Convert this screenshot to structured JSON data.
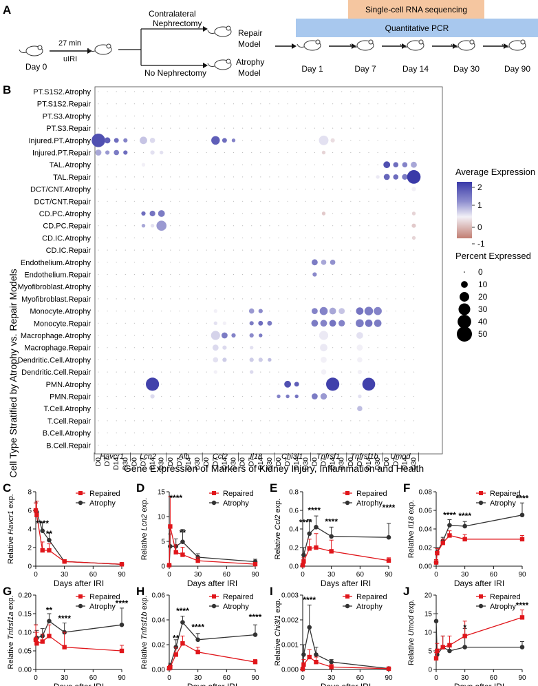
{
  "colors": {
    "rna_bar": "#f5c6a0",
    "pcr_bar": "#a8c8ee",
    "repaired": "#e0161b",
    "atrophy": "#333333",
    "dot_high": "#3a3aa8",
    "dot_mid": "#f2f0f7",
    "dot_low": "#c27e72"
  },
  "panel_a": {
    "label": "A",
    "day0": "Day 0",
    "time": "27 min",
    "uiri": "uIRI",
    "contralateral": "Contralateral",
    "nephrectomy": "Nephrectomy",
    "no_nephrectomy": "No Nephrectomy",
    "repair": "Repair",
    "atrophy": "Atrophy",
    "model": "Model",
    "rna_label": "Single-cell RNA sequencing",
    "pcr_label": "Quantitative PCR",
    "days": [
      "Day 1",
      "Day 7",
      "Day 14",
      "Day 30",
      "Day 90"
    ]
  },
  "panel_b": {
    "label": "B",
    "ylabel": "Cell Type Stratified by Atrophy vs. Repair Models",
    "xlabel": "Gene Expression of Markers of Kidney Injury, Inflammation and Health",
    "rows": [
      "PT.S1S2.Atrophy",
      "PT.S1S2.Repair",
      "PT.S3.Atrophy",
      "PT.S3.Repair",
      "Injured.PT.Atrophy",
      "Injured.PT.Repair",
      "TAL.Atrophy",
      "TAL.Repair",
      "DCT/CNT.Atrophy",
      "DCT/CNT.Repair",
      "CD.PC.Atrophy",
      "CD.PC.Repair",
      "CD.IC.Atrophy",
      "CD.IC.Repair",
      "Endothelium.Atrophy",
      "Endothelium.Repair",
      "Myofibroblast.Atrophy",
      "Myofibroblast.Repair",
      "Monocyte.Atrophy",
      "Monocyte.Repair",
      "Macrophage.Atrophy",
      "Macrophage.Repair",
      "Dendritic.Cell.Atrophy",
      "Dendritic.Cell.Repair",
      "PMN.Atrophy",
      "PMN.Repair",
      "T.Cell.Atrophy",
      "T.Cell.Repair",
      "B.Cell.Atrophy",
      "B.Cell.Repair"
    ],
    "days": [
      "D0",
      "D7",
      "D14",
      "D30"
    ],
    "genes": [
      "Havcr1",
      "Lcn2",
      "Alb",
      "Ccl2",
      "Il18",
      "Chi3l1",
      "Tnfrsf1",
      "Tnfrsf1b",
      "Umod"
    ],
    "legend_expr_title": "Average Expression",
    "legend_expr_ticks": [
      "2",
      "1",
      "0",
      "-1"
    ],
    "legend_pct_title": "Percent Expressed",
    "legend_pct_values": [
      "0",
      "10",
      "20",
      "30",
      "40",
      "50"
    ],
    "dots": [
      [
        4,
        0,
        40,
        2.2
      ],
      [
        4,
        1,
        8,
        2.0
      ],
      [
        4,
        2,
        5,
        1.8
      ],
      [
        4,
        3,
        4,
        1.5
      ],
      [
        5,
        0,
        8,
        1.0
      ],
      [
        5,
        1,
        4,
        1.2
      ],
      [
        5,
        2,
        6,
        1.6
      ],
      [
        5,
        3,
        4,
        1.8
      ],
      [
        4,
        5,
        12,
        0.6
      ],
      [
        4,
        6,
        6,
        0.3
      ],
      [
        5,
        6,
        4,
        0.2
      ],
      [
        5,
        7,
        3,
        0.2
      ],
      [
        6,
        5,
        3,
        0.0
      ],
      [
        10,
        5,
        4,
        1.8
      ],
      [
        10,
        6,
        7,
        1.7
      ],
      [
        10,
        7,
        10,
        1.6
      ],
      [
        11,
        5,
        3,
        1.0
      ],
      [
        11,
        6,
        3,
        0.2
      ],
      [
        11,
        7,
        22,
        1.2
      ],
      [
        24,
        6,
        38,
        2.4
      ],
      [
        25,
        6,
        4,
        0.3
      ],
      [
        4,
        13,
        16,
        2.0
      ],
      [
        4,
        14,
        5,
        1.8
      ],
      [
        4,
        15,
        3,
        1.5
      ],
      [
        20,
        13,
        18,
        0.4
      ],
      [
        20,
        14,
        8,
        1.6
      ],
      [
        20,
        15,
        4,
        1.5
      ],
      [
        21,
        13,
        8,
        0.3
      ],
      [
        21,
        14,
        4,
        0.3
      ],
      [
        22,
        13,
        6,
        0.2
      ],
      [
        22,
        14,
        4,
        0.5
      ],
      [
        19,
        13,
        3,
        0.2
      ],
      [
        19,
        14,
        3,
        0.0
      ],
      [
        18,
        13,
        3,
        0.0
      ],
      [
        23,
        13,
        3,
        0.0
      ],
      [
        18,
        17,
        6,
        1.2
      ],
      [
        18,
        18,
        4,
        1.4
      ],
      [
        19,
        17,
        4,
        1.6
      ],
      [
        19,
        18,
        5,
        1.8
      ],
      [
        19,
        19,
        5,
        1.6
      ],
      [
        20,
        17,
        4,
        1.4
      ],
      [
        20,
        18,
        3,
        1.6
      ],
      [
        21,
        17,
        3,
        0.2
      ],
      [
        22,
        17,
        4,
        0.5
      ],
      [
        22,
        18,
        4,
        0.5
      ],
      [
        22,
        19,
        3,
        0.7
      ],
      [
        23,
        17,
        3,
        0.3
      ],
      [
        24,
        21,
        10,
        2.2
      ],
      [
        24,
        22,
        5,
        2.0
      ],
      [
        25,
        20,
        3,
        1.5
      ],
      [
        25,
        21,
        3,
        1.6
      ],
      [
        25,
        22,
        3,
        1.7
      ],
      [
        14,
        24,
        8,
        1.6
      ],
      [
        15,
        24,
        4,
        1.4
      ],
      [
        14,
        25,
        6,
        1.0
      ],
      [
        18,
        24,
        8,
        1.5
      ],
      [
        18,
        25,
        14,
        1.5
      ],
      [
        18,
        26,
        10,
        1.0
      ],
      [
        18,
        27,
        8,
        0.6
      ],
      [
        19,
        24,
        10,
        1.6
      ],
      [
        19,
        25,
        10,
        1.5
      ],
      [
        19,
        26,
        10,
        1.7
      ],
      [
        19,
        27,
        9,
        1.5
      ],
      [
        20,
        25,
        18,
        0.1
      ],
      [
        21,
        25,
        12,
        0.1
      ],
      [
        22,
        25,
        8,
        0.0
      ],
      [
        23,
        25,
        6,
        0.0
      ],
      [
        4,
        25,
        20,
        0.2
      ],
      [
        4,
        26,
        4,
        -0.2
      ],
      [
        24,
        26,
        38,
        2.4
      ],
      [
        25,
        24,
        8,
        1.6
      ],
      [
        25,
        25,
        9,
        1.2
      ],
      [
        5,
        25,
        3,
        -0.3
      ],
      [
        10,
        25,
        3,
        -0.4
      ],
      [
        14,
        26,
        6,
        1.3
      ],
      [
        18,
        29,
        12,
        1.7
      ],
      [
        18,
        30,
        16,
        1.6
      ],
      [
        18,
        31,
        14,
        1.5
      ],
      [
        19,
        29,
        14,
        1.6
      ],
      [
        19,
        30,
        12,
        1.7
      ],
      [
        19,
        31,
        12,
        1.6
      ],
      [
        20,
        29,
        10,
        0.2
      ],
      [
        21,
        29,
        8,
        0.0
      ],
      [
        22,
        29,
        6,
        0.0
      ],
      [
        23,
        29,
        4,
        0.0
      ],
      [
        24,
        30,
        36,
        2.4
      ],
      [
        26,
        29,
        6,
        0.7
      ],
      [
        25,
        29,
        3,
        0.2
      ],
      [
        6,
        32,
        10,
        2.2
      ],
      [
        6,
        33,
        6,
        1.8
      ],
      [
        6,
        34,
        6,
        1.5
      ],
      [
        6,
        35,
        8,
        1.0
      ],
      [
        7,
        32,
        8,
        1.9
      ],
      [
        7,
        33,
        6,
        1.8
      ],
      [
        7,
        34,
        7,
        1.6
      ],
      [
        7,
        35,
        40,
        2.5
      ],
      [
        8,
        35,
        4,
        0.0
      ],
      [
        11,
        35,
        4,
        -0.4
      ],
      [
        12,
        35,
        3,
        -0.3
      ],
      [
        10,
        35,
        3,
        -0.3
      ],
      [
        7,
        31,
        3,
        0.1
      ]
    ]
  },
  "line_panels": [
    {
      "label": "C",
      "gene": "Havcr1",
      "ylabel_pre": "Relative ",
      "ylabel_post": " exp.",
      "xlabel": "Days after IRI",
      "xticks": [
        "0",
        "30",
        "60",
        "90"
      ],
      "ymax": 8,
      "yticks": [
        "0",
        "2",
        "4",
        "6",
        "8"
      ],
      "x": [
        0,
        1,
        7,
        14,
        30,
        90
      ],
      "repaired": [
        6,
        5.5,
        1.7,
        1.7,
        0.5,
        0.2
      ],
      "atrophy": [
        6,
        5.8,
        3.8,
        2.8,
        0.5,
        0.2
      ],
      "rep_err": [
        0.8,
        1.5,
        0.9,
        0.7,
        0.2,
        0.1
      ],
      "atr_err": [
        0.8,
        1.2,
        0.9,
        0.8,
        0.2,
        0.1
      ],
      "stars": [
        [
          "****",
          7,
          4.3
        ],
        [
          "**",
          14,
          3.2
        ]
      ]
    },
    {
      "label": "D",
      "gene": "Lcn2",
      "ylabel_pre": "Relative ",
      "ylabel_post": " exp.",
      "xlabel": "Days after IRI",
      "xticks": [
        "0",
        "30",
        "60",
        "90"
      ],
      "ymax": 15,
      "yticks": [
        "0",
        "5",
        "10",
        "15"
      ],
      "x": [
        0,
        1,
        7,
        14,
        30,
        90
      ],
      "repaired": [
        0.2,
        8,
        2.8,
        2.3,
        1.1,
        0.4
      ],
      "atrophy": [
        0.2,
        4,
        4,
        4.9,
        1.8,
        0.9
      ],
      "rep_err": [
        0.1,
        6,
        1.5,
        1.5,
        0.7,
        0.3
      ],
      "atr_err": [
        0.1,
        2.5,
        1.5,
        2.5,
        0.7,
        0.5
      ],
      "stars": [
        [
          "****",
          7,
          13.2
        ],
        [
          "**",
          14,
          6.2
        ]
      ]
    },
    {
      "label": "E",
      "gene": "Ccl2",
      "ylabel_pre": "Relative ",
      "ylabel_post": " exp.",
      "xlabel": "Days after IRI",
      "xticks": [
        "0",
        "30",
        "60",
        "90"
      ],
      "ymax": 0.8,
      "yticks": [
        "0.0",
        "0.2",
        "0.4",
        "0.6",
        "0.8"
      ],
      "x": [
        0,
        1,
        7,
        14,
        30,
        90
      ],
      "repaired": [
        0.01,
        0.05,
        0.19,
        0.2,
        0.16,
        0.06
      ],
      "atrophy": [
        0.01,
        0.12,
        0.35,
        0.42,
        0.32,
        0.31
      ],
      "rep_err": [
        0.01,
        0.04,
        0.1,
        0.15,
        0.12,
        0.03
      ],
      "atr_err": [
        0.01,
        0.08,
        0.15,
        0.12,
        0.1,
        0.15
      ],
      "stars": [
        [
          "****",
          3,
          0.44
        ],
        [
          "****",
          12,
          0.57
        ],
        [
          "****",
          30,
          0.45
        ],
        [
          "****",
          90,
          0.6
        ]
      ]
    },
    {
      "label": "F",
      "gene": "Il18",
      "ylabel_pre": "Relative ",
      "ylabel_post": " exp.",
      "xlabel": "Days after IRI",
      "xticks": [
        "0",
        "30",
        "60",
        "90"
      ],
      "ymax": 0.08,
      "yticks": [
        "0.00",
        "0.02",
        "0.04",
        "0.06",
        "0.08"
      ],
      "x": [
        0,
        1,
        7,
        14,
        30,
        90
      ],
      "repaired": [
        0.004,
        0.014,
        0.025,
        0.033,
        0.029,
        0.029
      ],
      "atrophy": [
        0.004,
        0.015,
        0.027,
        0.044,
        0.043,
        0.055
      ],
      "rep_err": [
        0.003,
        0.005,
        0.004,
        0.005,
        0.005,
        0.004
      ],
      "atr_err": [
        0.003,
        0.005,
        0.004,
        0.006,
        0.005,
        0.013
      ],
      "stars": [
        [
          "****",
          14,
          0.052
        ],
        [
          "****",
          30,
          0.051
        ],
        [
          "****",
          90,
          0.07
        ]
      ]
    },
    {
      "label": "G",
      "gene": "Tnfrsf1a",
      "ylabel_pre": "Relative ",
      "ylabel_post": " exp.",
      "xlabel": "Days after IRI",
      "xticks": [
        "0",
        "30",
        "60",
        "90"
      ],
      "ymax": 0.2,
      "yticks": [
        "0.00",
        "0.05",
        "0.10",
        "0.15",
        "0.20"
      ],
      "x": [
        0,
        1,
        7,
        14,
        30,
        90
      ],
      "repaired": [
        0.08,
        0.07,
        0.075,
        0.09,
        0.06,
        0.05
      ],
      "atrophy": [
        0.08,
        0.085,
        0.09,
        0.13,
        0.1,
        0.12
      ],
      "rep_err": [
        0.04,
        0.03,
        0.02,
        0.03,
        0.04,
        0.015
      ],
      "atr_err": [
        0.04,
        0.02,
        0.02,
        0.02,
        0.025,
        0.045
      ],
      "stars": [
        [
          "**",
          14,
          0.152
        ],
        [
          "****",
          30,
          0.13
        ],
        [
          "****",
          90,
          0.17
        ]
      ]
    },
    {
      "label": "H",
      "gene": "Tnfrsf1b",
      "ylabel_pre": "Relative ",
      "ylabel_post": " exp.",
      "xlabel": "Days after IRI",
      "xticks": [
        "0",
        "30",
        "60",
        "90"
      ],
      "ymax": 0.06,
      "yticks": [
        "0.00",
        "0.02",
        "0.04",
        "0.06"
      ],
      "x": [
        0,
        1,
        7,
        14,
        30,
        90
      ],
      "repaired": [
        0.001,
        0.002,
        0.012,
        0.021,
        0.014,
        0.006
      ],
      "atrophy": [
        0.001,
        0.003,
        0.018,
        0.038,
        0.024,
        0.028
      ],
      "rep_err": [
        0.001,
        0.001,
        0.006,
        0.006,
        0.004,
        0.002
      ],
      "atr_err": [
        0.001,
        0.002,
        0.006,
        0.005,
        0.005,
        0.008
      ],
      "stars": [
        [
          "**",
          7,
          0.023
        ],
        [
          "****",
          14,
          0.045
        ],
        [
          "****",
          30,
          0.032
        ],
        [
          "****",
          90,
          0.04
        ]
      ]
    },
    {
      "label": "I",
      "gene": "Chi3l1",
      "ylabel_pre": "Relative ",
      "ylabel_post": " exp.",
      "xlabel": "Days after IRI",
      "xticks": [
        "0",
        "30",
        "60",
        "90"
      ],
      "ymax": 0.003,
      "yticks": [
        "0.000",
        "0.001",
        "0.002",
        "0.003"
      ],
      "x": [
        0,
        1,
        7,
        14,
        30,
        90
      ],
      "repaired": [
        2e-05,
        0.0002,
        0.0005,
        0.0003,
        0.0001,
        3e-05
      ],
      "atrophy": [
        2e-05,
        0.0006,
        0.0017,
        0.0006,
        0.0003,
        4e-05
      ],
      "rep_err": [
        1e-05,
        0.0002,
        0.0003,
        0.0002,
        0.0001,
        2e-05
      ],
      "atr_err": [
        1e-05,
        0.0004,
        0.0009,
        0.0003,
        0.0001,
        2e-05
      ],
      "stars": [
        [
          "****",
          7,
          0.0027
        ]
      ]
    },
    {
      "label": "J",
      "gene": "Umod",
      "ylabel_pre": "Relative ",
      "ylabel_post": " exp.",
      "xlabel": "Days after IRI",
      "xticks": [
        "0",
        "30",
        "60",
        "90"
      ],
      "ymax": 20,
      "yticks": [
        "0",
        "5",
        "10",
        "15",
        "20"
      ],
      "x": [
        0,
        1,
        7,
        14,
        30,
        90
      ],
      "repaired": [
        3,
        5,
        6,
        6.5,
        9,
        14
      ],
      "atrophy": [
        13,
        4,
        6,
        5,
        6,
        6
      ],
      "rep_err": [
        1.5,
        2,
        3,
        2.5,
        4,
        2
      ],
      "atr_err": [
        2,
        1.5,
        3,
        2,
        5,
        1.5
      ],
      "stars": [
        [
          "*",
          30,
          10.5
        ],
        [
          "****",
          90,
          16.5
        ]
      ]
    }
  ],
  "legend": {
    "repaired": "Repaired",
    "atrophy": "Atrophy"
  }
}
